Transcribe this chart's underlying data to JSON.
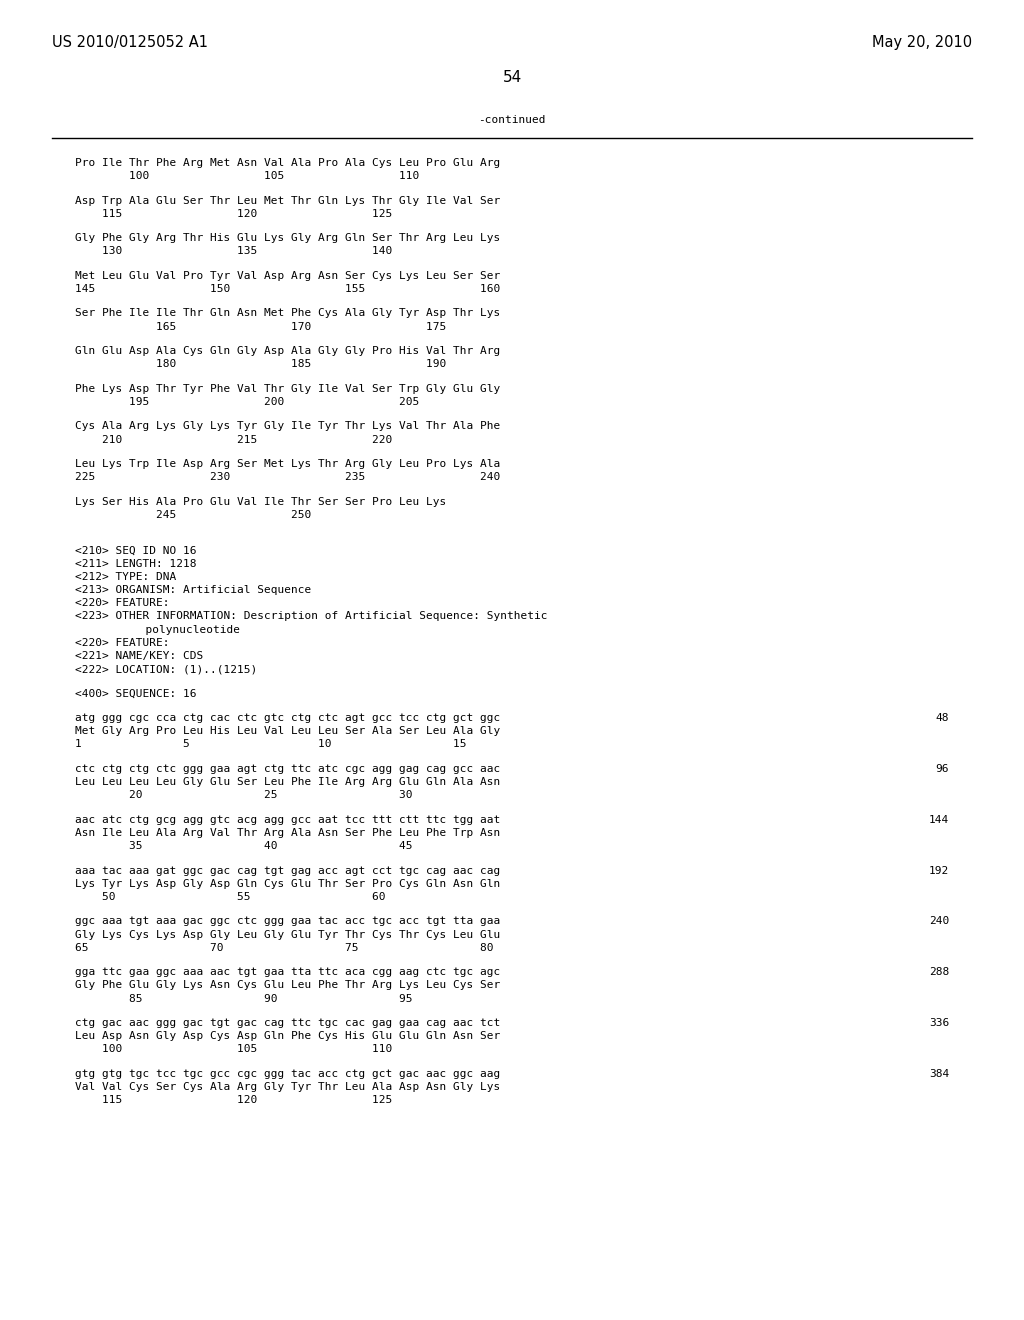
{
  "header_left": "US 2010/0125052 A1",
  "header_right": "May 20, 2010",
  "page_number": "54",
  "continued_label": "-continued",
  "background_color": "#ffffff",
  "text_color": "#000000",
  "lines": [
    {
      "type": "seq_aa",
      "text": "Pro Ile Thr Phe Arg Met Asn Val Ala Pro Ala Cys Leu Pro Glu Arg",
      "numbers": "        100                 105                 110"
    },
    {
      "type": "blank"
    },
    {
      "type": "seq_aa",
      "text": "Asp Trp Ala Glu Ser Thr Leu Met Thr Gln Lys Thr Gly Ile Val Ser",
      "numbers": "    115                 120                 125"
    },
    {
      "type": "blank"
    },
    {
      "type": "seq_aa",
      "text": "Gly Phe Gly Arg Thr His Glu Lys Gly Arg Gln Ser Thr Arg Leu Lys",
      "numbers": "    130                 135                 140"
    },
    {
      "type": "blank"
    },
    {
      "type": "seq_aa",
      "text": "Met Leu Glu Val Pro Tyr Val Asp Arg Asn Ser Cys Lys Leu Ser Ser",
      "numbers": "145                 150                 155                 160"
    },
    {
      "type": "blank"
    },
    {
      "type": "seq_aa",
      "text": "Ser Phe Ile Ile Thr Gln Asn Met Phe Cys Ala Gly Tyr Asp Thr Lys",
      "numbers": "            165                 170                 175"
    },
    {
      "type": "blank"
    },
    {
      "type": "seq_aa",
      "text": "Gln Glu Asp Ala Cys Gln Gly Asp Ala Gly Gly Pro His Val Thr Arg",
      "numbers": "            180                 185                 190"
    },
    {
      "type": "blank"
    },
    {
      "type": "seq_aa",
      "text": "Phe Lys Asp Thr Tyr Phe Val Thr Gly Ile Val Ser Trp Gly Glu Gly",
      "numbers": "        195                 200                 205"
    },
    {
      "type": "blank"
    },
    {
      "type": "seq_aa",
      "text": "Cys Ala Arg Lys Gly Lys Tyr Gly Ile Tyr Thr Lys Val Thr Ala Phe",
      "numbers": "    210                 215                 220"
    },
    {
      "type": "blank"
    },
    {
      "type": "seq_aa",
      "text": "Leu Lys Trp Ile Asp Arg Ser Met Lys Thr Arg Gly Leu Pro Lys Ala",
      "numbers": "225                 230                 235                 240"
    },
    {
      "type": "blank"
    },
    {
      "type": "seq_aa",
      "text": "Lys Ser His Ala Pro Glu Val Ile Thr Ser Ser Pro Leu Lys",
      "numbers": "            245                 250"
    },
    {
      "type": "blank"
    },
    {
      "type": "blank"
    },
    {
      "type": "meta",
      "text": "<210> SEQ ID NO 16"
    },
    {
      "type": "meta",
      "text": "<211> LENGTH: 1218"
    },
    {
      "type": "meta",
      "text": "<212> TYPE: DNA"
    },
    {
      "type": "meta",
      "text": "<213> ORGANISM: Artificial Sequence"
    },
    {
      "type": "meta",
      "text": "<220> FEATURE:"
    },
    {
      "type": "meta",
      "text": "<223> OTHER INFORMATION: Description of Artificial Sequence: Synthetic"
    },
    {
      "type": "meta_indent",
      "text": "      polynucleotide"
    },
    {
      "type": "meta",
      "text": "<220> FEATURE:"
    },
    {
      "type": "meta",
      "text": "<221> NAME/KEY: CDS"
    },
    {
      "type": "meta",
      "text": "<222> LOCATION: (1)..(1215)"
    },
    {
      "type": "blank"
    },
    {
      "type": "meta",
      "text": "<400> SEQUENCE: 16"
    },
    {
      "type": "blank"
    },
    {
      "type": "dna",
      "seq": "atg ggg cgc cca ctg cac ctc gtc ctg ctc agt gcc tcc ctg gct ggc",
      "num": "48",
      "aa": "Met Gly Arg Pro Leu His Leu Val Leu Leu Ser Ala Ser Leu Ala Gly",
      "pos": "1               5                   10                  15"
    },
    {
      "type": "blank"
    },
    {
      "type": "dna",
      "seq": "ctc ctg ctg ctc ggg gaa agt ctg ttc atc cgc agg gag cag gcc aac",
      "num": "96",
      "aa": "Leu Leu Leu Leu Gly Glu Ser Leu Phe Ile Arg Arg Glu Gln Ala Asn",
      "pos": "        20                  25                  30"
    },
    {
      "type": "blank"
    },
    {
      "type": "dna",
      "seq": "aac atc ctg gcg agg gtc acg agg gcc aat tcc ttt ctt ttc tgg aat",
      "num": "144",
      "aa": "Asn Ile Leu Ala Arg Val Thr Arg Ala Asn Ser Phe Leu Phe Trp Asn",
      "pos": "        35                  40                  45"
    },
    {
      "type": "blank"
    },
    {
      "type": "dna",
      "seq": "aaa tac aaa gat ggc gac cag tgt gag acc agt cct tgc cag aac cag",
      "num": "192",
      "aa": "Lys Tyr Lys Asp Gly Asp Gln Cys Glu Thr Ser Pro Cys Gln Asn Gln",
      "pos": "    50                  55                  60"
    },
    {
      "type": "blank"
    },
    {
      "type": "dna",
      "seq": "ggc aaa tgt aaa gac ggc ctc ggg gaa tac acc tgc acc tgt tta gaa",
      "num": "240",
      "aa": "Gly Lys Cys Lys Asp Gly Leu Gly Glu Tyr Thr Cys Thr Cys Leu Glu",
      "pos": "65                  70                  75                  80"
    },
    {
      "type": "blank"
    },
    {
      "type": "dna",
      "seq": "gga ttc gaa ggc aaa aac tgt gaa tta ttc aca cgg aag ctc tgc agc",
      "num": "288",
      "aa": "Gly Phe Glu Gly Lys Asn Cys Glu Leu Phe Thr Arg Lys Leu Cys Ser",
      "pos": "        85                  90                  95"
    },
    {
      "type": "blank"
    },
    {
      "type": "dna",
      "seq": "ctg gac aac ggg gac tgt gac cag ttc tgc cac gag gaa cag aac tct",
      "num": "336",
      "aa": "Leu Asp Asn Gly Asp Cys Asp Gln Phe Cys His Glu Glu Gln Asn Ser",
      "pos": "    100                 105                 110"
    },
    {
      "type": "blank"
    },
    {
      "type": "dna",
      "seq": "gtg gtg tgc tcc tgc gcc cgc ggg tac acc ctg gct gac aac ggc aag",
      "num": "384",
      "aa": "Val Val Cys Ser Cys Ala Arg Gly Tyr Thr Leu Ala Asp Asn Gly Lys",
      "pos": "    115                 120                 125"
    }
  ]
}
